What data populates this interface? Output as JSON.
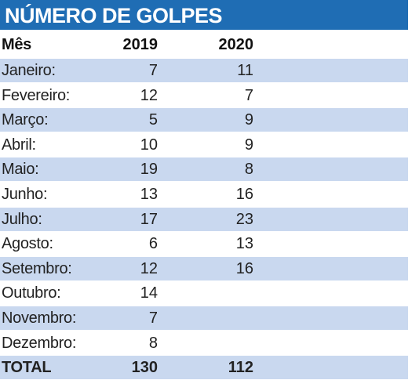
{
  "title": "NÚMERO DE GOLPES",
  "table": {
    "header": [
      "Mês",
      "2019",
      "2020"
    ],
    "rows": [
      [
        "Janeiro:",
        7,
        11
      ],
      [
        "Fevereiro:",
        12,
        7
      ],
      [
        "Março:",
        5,
        9
      ],
      [
        "Abril:",
        10,
        9
      ],
      [
        "Maio:",
        19,
        8
      ],
      [
        "Junho:",
        13,
        16
      ],
      [
        "Julho:",
        17,
        23
      ],
      [
        "Agosto:",
        6,
        13
      ],
      [
        "Setembro:",
        12,
        16
      ],
      [
        "Outubro:",
        14
      ],
      [
        "Novembro:",
        7
      ],
      [
        "Dezembro:",
        8
      ],
      [
        "TOTAL",
        130,
        112
      ]
    ]
  }
}
